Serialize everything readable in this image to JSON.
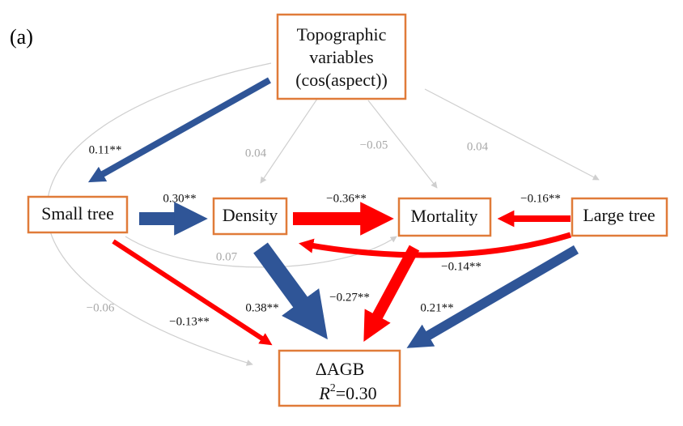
{
  "panel_label": "(a)",
  "nodes": [
    {
      "lines": [
        "Topographic",
        "variables",
        "(cos(aspect))"
      ]
    },
    {
      "lines": [
        "Small tree"
      ]
    },
    {
      "lines": [
        "Density"
      ]
    },
    {
      "lines": [
        "Mortality"
      ]
    },
    {
      "lines": [
        "Large tree"
      ]
    },
    {
      "lines": [
        "ΔAGB"
      ],
      "r_squared": [
        "R",
        "2",
        "=0.30"
      ]
    }
  ],
  "edges": [
    {
      "label": "0.11**"
    },
    {
      "label": "0.04"
    },
    {
      "label": "−0.05"
    },
    {
      "label": "0.04"
    },
    {
      "label": "−0.06"
    },
    {
      "label": "0.30**"
    },
    {
      "label": "−0.36**"
    },
    {
      "label": "−0.16**"
    },
    {
      "label": "0.07"
    },
    {
      "label": "−0.14**"
    },
    {
      "label": "−0.13**"
    },
    {
      "label": "0.38**"
    },
    {
      "label": "−0.27**"
    },
    {
      "label": "0.21**"
    }
  ]
}
